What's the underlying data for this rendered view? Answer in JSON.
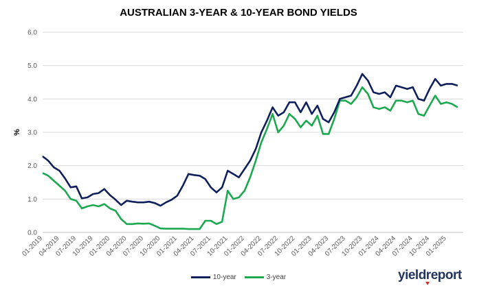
{
  "chart_data": {
    "type": "line",
    "title": "AUSTRALIAN 3-YEAR & 10-YEAR BOND YIELDS",
    "ylabel": "%",
    "xlabel": "",
    "ylim": [
      0,
      6
    ],
    "yticks": [
      "0.0",
      "1.0",
      "2.0",
      "3.0",
      "4.0",
      "5.0",
      "6.0"
    ],
    "x_tick_labels": [
      "01-2019",
      "04-2019",
      "07-2019",
      "10-2019",
      "01-2020",
      "04-2020",
      "07-2020",
      "10-2020",
      "01-2021",
      "04-2021",
      "07-2021",
      "10-2021",
      "01-2022",
      "04-2022",
      "07-2022",
      "10-2022",
      "01-2023",
      "04-2023",
      "07-2023",
      "10-2023",
      "01-2024",
      "04-2024",
      "07-2024",
      "10-2024",
      "01-2025"
    ],
    "xlim": [
      "2019-01",
      "2025-04"
    ],
    "grid": "horizontal",
    "legend_position": "bottom",
    "series": [
      {
        "name": "10-year",
        "color": "#0e1f5b",
        "points": [
          [
            "2019-01",
            2.28
          ],
          [
            "2019-02",
            2.15
          ],
          [
            "2019-03",
            1.95
          ],
          [
            "2019-04",
            1.85
          ],
          [
            "2019-05",
            1.62
          ],
          [
            "2019-06",
            1.35
          ],
          [
            "2019-07",
            1.38
          ],
          [
            "2019-08",
            1.02
          ],
          [
            "2019-09",
            1.05
          ],
          [
            "2019-10",
            1.15
          ],
          [
            "2019-11",
            1.18
          ],
          [
            "2019-12",
            1.3
          ],
          [
            "2020-01",
            1.12
          ],
          [
            "2020-02",
            0.98
          ],
          [
            "2020-03",
            0.82
          ],
          [
            "2020-04",
            0.95
          ],
          [
            "2020-05",
            0.92
          ],
          [
            "2020-06",
            0.9
          ],
          [
            "2020-07",
            0.9
          ],
          [
            "2020-08",
            0.92
          ],
          [
            "2020-09",
            0.88
          ],
          [
            "2020-10",
            0.8
          ],
          [
            "2020-11",
            0.9
          ],
          [
            "2020-12",
            0.98
          ],
          [
            "2021-01",
            1.1
          ],
          [
            "2021-02",
            1.4
          ],
          [
            "2021-03",
            1.75
          ],
          [
            "2021-04",
            1.72
          ],
          [
            "2021-05",
            1.7
          ],
          [
            "2021-06",
            1.6
          ],
          [
            "2021-07",
            1.35
          ],
          [
            "2021-08",
            1.2
          ],
          [
            "2021-09",
            1.35
          ],
          [
            "2021-10",
            1.85
          ],
          [
            "2021-11",
            1.75
          ],
          [
            "2021-12",
            1.65
          ],
          [
            "2022-01",
            1.9
          ],
          [
            "2022-02",
            2.15
          ],
          [
            "2022-03",
            2.5
          ],
          [
            "2022-04",
            3.0
          ],
          [
            "2022-05",
            3.35
          ],
          [
            "2022-06",
            3.75
          ],
          [
            "2022-07",
            3.5
          ],
          [
            "2022-08",
            3.6
          ],
          [
            "2022-09",
            3.9
          ],
          [
            "2022-10",
            3.9
          ],
          [
            "2022-11",
            3.6
          ],
          [
            "2022-12",
            3.9
          ],
          [
            "2023-01",
            3.55
          ],
          [
            "2023-02",
            3.8
          ],
          [
            "2023-03",
            3.4
          ],
          [
            "2023-04",
            3.3
          ],
          [
            "2023-05",
            3.6
          ],
          [
            "2023-06",
            4.0
          ],
          [
            "2023-07",
            4.05
          ],
          [
            "2023-08",
            4.1
          ],
          [
            "2023-09",
            4.4
          ],
          [
            "2023-10",
            4.75
          ],
          [
            "2023-11",
            4.55
          ],
          [
            "2023-12",
            4.2
          ],
          [
            "2024-01",
            4.15
          ],
          [
            "2024-02",
            4.2
          ],
          [
            "2024-03",
            4.05
          ],
          [
            "2024-04",
            4.4
          ],
          [
            "2024-05",
            4.35
          ],
          [
            "2024-06",
            4.3
          ],
          [
            "2024-07",
            4.35
          ],
          [
            "2024-08",
            4.0
          ],
          [
            "2024-09",
            3.95
          ],
          [
            "2024-10",
            4.3
          ],
          [
            "2024-11",
            4.6
          ],
          [
            "2024-12",
            4.4
          ],
          [
            "2025-01",
            4.45
          ],
          [
            "2025-02",
            4.45
          ],
          [
            "2025-03",
            4.4
          ]
        ]
      },
      {
        "name": "3-year",
        "color": "#1aa850",
        "points": [
          [
            "2019-01",
            1.78
          ],
          [
            "2019-02",
            1.7
          ],
          [
            "2019-03",
            1.55
          ],
          [
            "2019-04",
            1.4
          ],
          [
            "2019-05",
            1.25
          ],
          [
            "2019-06",
            1.0
          ],
          [
            "2019-07",
            0.95
          ],
          [
            "2019-08",
            0.72
          ],
          [
            "2019-09",
            0.78
          ],
          [
            "2019-10",
            0.82
          ],
          [
            "2019-11",
            0.78
          ],
          [
            "2019-12",
            0.85
          ],
          [
            "2020-01",
            0.72
          ],
          [
            "2020-02",
            0.65
          ],
          [
            "2020-03",
            0.4
          ],
          [
            "2020-04",
            0.25
          ],
          [
            "2020-05",
            0.25
          ],
          [
            "2020-06",
            0.27
          ],
          [
            "2020-07",
            0.26
          ],
          [
            "2020-08",
            0.27
          ],
          [
            "2020-09",
            0.2
          ],
          [
            "2020-10",
            0.12
          ],
          [
            "2020-11",
            0.11
          ],
          [
            "2020-12",
            0.11
          ],
          [
            "2021-01",
            0.11
          ],
          [
            "2021-02",
            0.11
          ],
          [
            "2021-03",
            0.1
          ],
          [
            "2021-04",
            0.1
          ],
          [
            "2021-05",
            0.1
          ],
          [
            "2021-06",
            0.35
          ],
          [
            "2021-07",
            0.35
          ],
          [
            "2021-08",
            0.25
          ],
          [
            "2021-09",
            0.32
          ],
          [
            "2021-10",
            1.25
          ],
          [
            "2021-11",
            1.0
          ],
          [
            "2021-12",
            1.05
          ],
          [
            "2022-01",
            1.25
          ],
          [
            "2022-02",
            1.65
          ],
          [
            "2022-03",
            2.15
          ],
          [
            "2022-04",
            2.7
          ],
          [
            "2022-05",
            3.1
          ],
          [
            "2022-06",
            3.55
          ],
          [
            "2022-07",
            3.0
          ],
          [
            "2022-08",
            3.2
          ],
          [
            "2022-09",
            3.55
          ],
          [
            "2022-10",
            3.4
          ],
          [
            "2022-11",
            3.15
          ],
          [
            "2022-12",
            3.35
          ],
          [
            "2023-01",
            3.2
          ],
          [
            "2023-02",
            3.5
          ],
          [
            "2023-03",
            2.95
          ],
          [
            "2023-04",
            2.95
          ],
          [
            "2023-05",
            3.4
          ],
          [
            "2023-06",
            3.95
          ],
          [
            "2023-07",
            3.95
          ],
          [
            "2023-08",
            3.85
          ],
          [
            "2023-09",
            4.05
          ],
          [
            "2023-10",
            4.35
          ],
          [
            "2023-11",
            4.15
          ],
          [
            "2023-12",
            3.75
          ],
          [
            "2024-01",
            3.7
          ],
          [
            "2024-02",
            3.75
          ],
          [
            "2024-03",
            3.65
          ],
          [
            "2024-04",
            3.95
          ],
          [
            "2024-05",
            3.95
          ],
          [
            "2024-06",
            3.9
          ],
          [
            "2024-07",
            3.95
          ],
          [
            "2024-08",
            3.55
          ],
          [
            "2024-09",
            3.5
          ],
          [
            "2024-10",
            3.8
          ],
          [
            "2024-11",
            4.1
          ],
          [
            "2024-12",
            3.85
          ],
          [
            "2025-01",
            3.9
          ],
          [
            "2025-02",
            3.85
          ],
          [
            "2025-03",
            3.75
          ]
        ]
      }
    ]
  },
  "brand": {
    "text": "yieldreport"
  }
}
